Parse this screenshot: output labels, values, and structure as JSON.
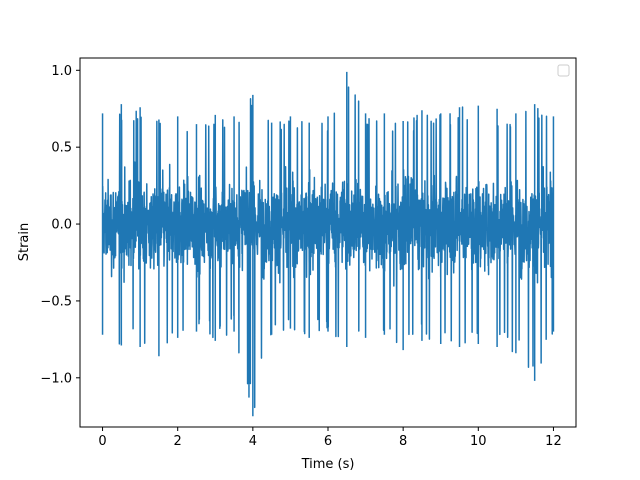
{
  "chart_data": {
    "type": "line",
    "title": "",
    "xlabel": "Time (s)",
    "ylabel": "Strain",
    "xlim": [
      -0.6,
      12.6
    ],
    "ylim": [
      -1.32,
      1.08
    ],
    "x_ticks": [
      0,
      2,
      4,
      6,
      8,
      10,
      12
    ],
    "x_tick_labels": [
      "0",
      "2",
      "4",
      "6",
      "8",
      "10",
      "12"
    ],
    "y_ticks": [
      -1.0,
      -0.5,
      0.0,
      0.5,
      1.0
    ],
    "y_tick_labels": [
      "−1.0",
      "−0.5",
      "0.0",
      "0.5",
      "1.0"
    ],
    "grid": false,
    "legend": {
      "visible": true,
      "placement": "upper-right",
      "entries": []
    },
    "series": [
      {
        "color": "#1f77b4",
        "x_range": [
          0,
          12
        ],
        "x": [
          0.0,
          0.5,
          1.0,
          1.5,
          2.0,
          2.5,
          3.0,
          3.5,
          4.0,
          4.5,
          5.0,
          5.5,
          6.0,
          6.5,
          7.0,
          7.5,
          8.0,
          8.5,
          9.0,
          9.5,
          10.0,
          10.5,
          11.0,
          11.5,
          12.0
        ],
        "upper_envelope": [
          0.72,
          0.78,
          0.76,
          0.68,
          0.7,
          0.65,
          0.71,
          0.7,
          0.84,
          0.66,
          0.7,
          0.66,
          0.7,
          0.99,
          0.72,
          0.72,
          0.67,
          0.74,
          0.72,
          0.76,
          0.77,
          0.75,
          0.72,
          0.78,
          0.7
        ],
        "lower_envelope": [
          -0.72,
          -0.79,
          -0.8,
          -0.86,
          -0.74,
          -0.7,
          -0.76,
          -0.7,
          -1.25,
          -0.72,
          -0.68,
          -0.74,
          -0.7,
          -0.8,
          -0.74,
          -0.72,
          -0.82,
          -0.76,
          -0.78,
          -0.8,
          -0.78,
          -0.8,
          -0.84,
          -1.02,
          -0.7
        ]
      }
    ]
  }
}
